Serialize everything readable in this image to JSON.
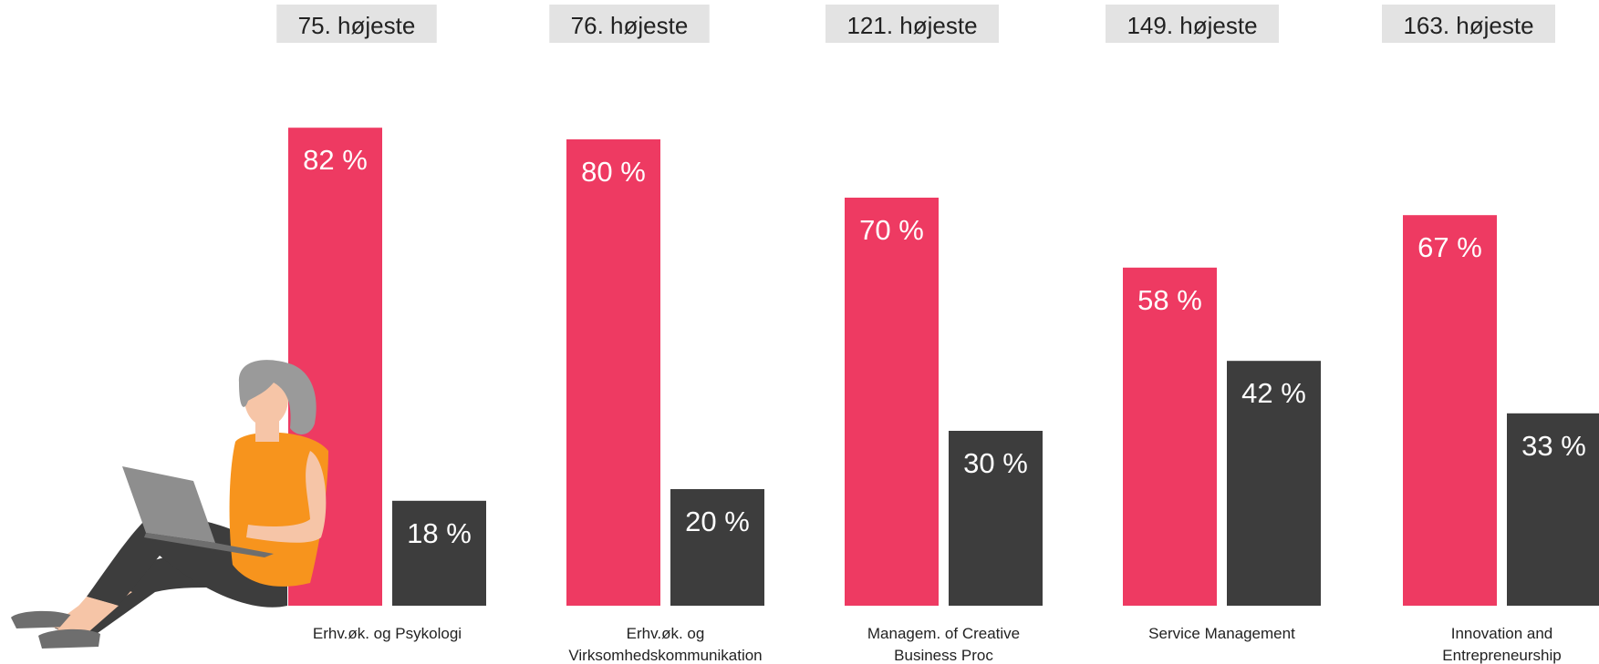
{
  "chart_data": {
    "type": "bar",
    "categories": [
      [
        "Erhv.øk. og Psykologi"
      ],
      [
        "Erhv.øk. og",
        "Virksomhedskommunikation"
      ],
      [
        "Managem. of Creative",
        "Business Proc"
      ],
      [
        "Service Management"
      ],
      [
        "Innovation and",
        "Entrepreneurship"
      ]
    ],
    "rank_labels": [
      "75. højeste",
      "76. højeste",
      "121. højeste",
      "149. højeste",
      "163. højeste"
    ],
    "series": [
      {
        "values": [
          82,
          80,
          70,
          58,
          67
        ],
        "labels": [
          "82 %",
          "80 %",
          "70 %",
          "58 %",
          "67 %"
        ],
        "color": "#ee3a62"
      },
      {
        "values": [
          18,
          20,
          30,
          42,
          33
        ],
        "labels": [
          "18 %",
          "20 %",
          "30 %",
          "42 %",
          "33 %"
        ],
        "color": "#3d3d3d"
      }
    ],
    "ylim": [
      0,
      100
    ],
    "grid": false,
    "legend": "none",
    "rank_badge_color": "#e3e3e3"
  },
  "illustration": {
    "icon": "woman-with-laptop-illustration",
    "colors": {
      "hair": "#9a9a9a",
      "skin": "#f6c5a7",
      "top": "#f7941d",
      "pants": "#3d3d3d",
      "laptop": "#8e8e8e"
    }
  }
}
